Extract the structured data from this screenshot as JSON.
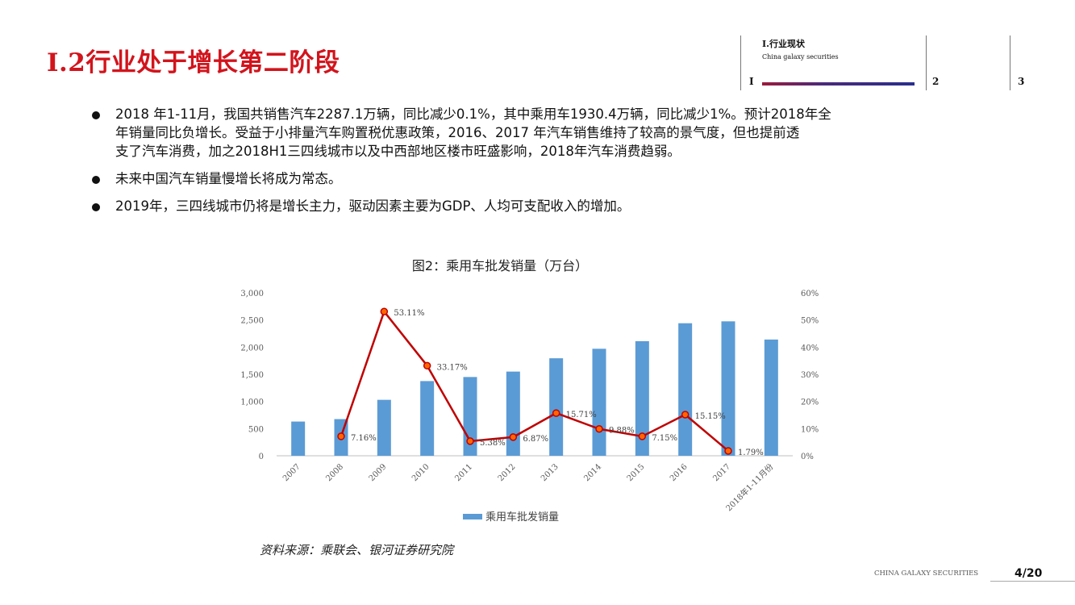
{
  "slide": {
    "title": "I.2行业处于增长第二阶段",
    "nav": {
      "section_title": "I.行业现状",
      "section_subtitle": "China galaxy securities",
      "items": [
        "I",
        "2",
        "3"
      ]
    },
    "bullets": [
      {
        "line1": "2018 年1-11月，我国共销售汽车2287.1万辆，同比减少0.1%，其中乘用车1930.4万辆，同比减少1%。预计2018年全",
        "line2": "年销量同比负增长。受益于小排量汽车购置税优惠政策，2016、2017 年汽车销售维持了较高的景气度，但也提前透",
        "line3": "支了汽车消费，加之2018H1三四线城市以及中西部地区楼市旺盛影响，2018年汽车消费趋弱。"
      },
      {
        "line1": "未来中国汽车销量慢增长将成为常态。"
      },
      {
        "line1": "2019年，三四线城市仍将是增长主力，驱动因素主要为GDP、人均可支配收入的增加。"
      }
    ],
    "source": "资料来源：乘联会、银河证券研究院",
    "footer_brand": "CHINA GALAXY SECURITIES",
    "page": "4/20"
  },
  "chart_data": {
    "type": "bar",
    "title": "图2：乘用车批发销量（万台）",
    "categories": [
      "2007",
      "2008",
      "2009",
      "2010",
      "2011",
      "2012",
      "2013",
      "2014",
      "2015",
      "2016",
      "2017",
      "2018年1-11月份"
    ],
    "series": [
      {
        "name": "乘用车批发销量",
        "type": "bar",
        "axis": "left",
        "color": "#5b9bd5",
        "values": [
          630,
          675,
          1030,
          1375,
          1450,
          1550,
          1795,
          1970,
          2110,
          2440,
          2475,
          2140
        ]
      },
      {
        "type": "line",
        "axis": "right",
        "color": "#c00000",
        "marker_color": "#ff6600",
        "values": [
          null,
          7.16,
          53.11,
          33.17,
          5.38,
          6.87,
          15.71,
          9.88,
          7.15,
          15.15,
          1.79,
          null
        ],
        "labels": [
          null,
          "7.16%",
          "53.11%",
          "33.17%",
          "5.38%",
          "6.87%",
          "15.71%",
          "9.88%",
          "7.15%",
          "15.15%",
          "1.79%",
          null
        ]
      }
    ],
    "y_left": {
      "ylim": [
        0,
        3000
      ],
      "ticks": [
        "0",
        "500",
        "1,000",
        "1,500",
        "2,000",
        "2,500",
        "3,000"
      ],
      "tick_values": [
        0,
        500,
        1000,
        1500,
        2000,
        2500,
        3000
      ]
    },
    "y_right": {
      "ylim": [
        0,
        60
      ],
      "ticks": [
        "0%",
        "10%",
        "20%",
        "30%",
        "40%",
        "50%",
        "60%"
      ],
      "tick_values": [
        0,
        10,
        20,
        30,
        40,
        50,
        60
      ]
    },
    "legend": "bottom-center",
    "grid": false
  }
}
